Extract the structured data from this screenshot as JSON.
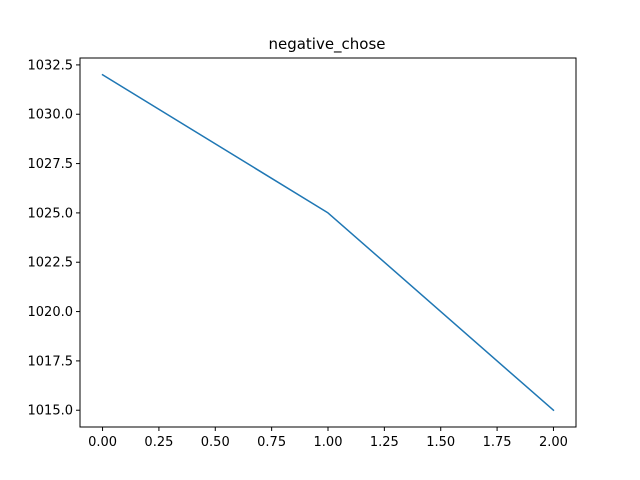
{
  "chart_data": {
    "type": "line",
    "title": "negative_chose",
    "xlabel": "",
    "ylabel": "",
    "x": [
      0,
      1,
      2
    ],
    "series": [
      {
        "values": [
          1032.0,
          1025.0,
          1015.0
        ]
      }
    ],
    "xlim": [
      -0.1,
      2.1
    ],
    "ylim": [
      1014.15,
      1032.85
    ],
    "xticks": [
      0.0,
      0.25,
      0.5,
      0.75,
      1.0,
      1.25,
      1.5,
      1.75,
      2.0
    ],
    "xtick_labels": [
      "0.00",
      "0.25",
      "0.50",
      "0.75",
      "1.00",
      "1.25",
      "1.50",
      "1.75",
      "2.00"
    ],
    "yticks": [
      1015.0,
      1017.5,
      1020.0,
      1022.5,
      1025.0,
      1027.5,
      1030.0,
      1032.5
    ],
    "ytick_labels": [
      "1015.0",
      "1017.5",
      "1020.0",
      "1022.5",
      "1025.0",
      "1027.5",
      "1030.0",
      "1032.5"
    ],
    "grid": false,
    "line_color": "#1f77b4"
  }
}
